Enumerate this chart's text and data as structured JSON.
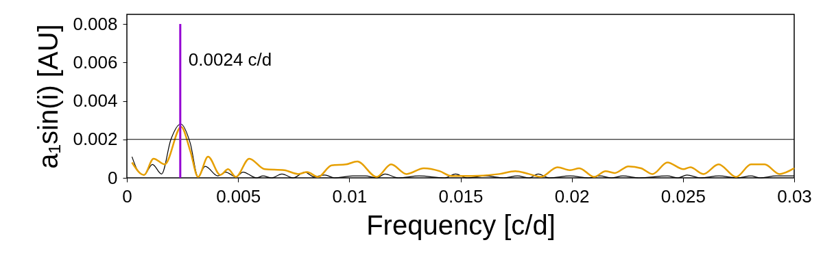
{
  "chart_data": {
    "type": "line",
    "xlabel": "Frequency [c/d]",
    "ylabel": "a₁sin(i) [AU]",
    "xlim": [
      0,
      0.03
    ],
    "ylim": [
      0,
      0.0085
    ],
    "xticks": [
      0,
      0.005,
      0.01,
      0.015,
      0.02,
      0.025,
      0.03
    ],
    "yticks": [
      0,
      0.002,
      0.004,
      0.006,
      0.008
    ],
    "grid": false,
    "marker": "none",
    "line_style": "solid",
    "ref_lines": [
      {
        "axis": "y",
        "value": 0.002,
        "color": "#000000"
      },
      {
        "axis": "x",
        "value": 0.0024,
        "label": "0.0024 c/d",
        "color": "#9400d3"
      }
    ],
    "series": [
      {
        "color": "#000000",
        "x": [
          0.00023,
          0.00048,
          0.00077,
          0.00115,
          0.00156,
          0.00198,
          0.00242,
          0.00285,
          0.0032,
          0.00352,
          0.00409,
          0.00444,
          0.0049,
          0.00522,
          0.00583,
          0.00612,
          0.0065,
          0.00697,
          0.00748,
          0.008,
          0.00841,
          0.0089,
          0.00933,
          0.01015,
          0.01072,
          0.01123,
          0.0116,
          0.01221,
          0.01314,
          0.01427,
          0.01478,
          0.0153,
          0.01612,
          0.01694,
          0.01756,
          0.01808,
          0.01849,
          0.019,
          0.01993,
          0.02075,
          0.02127,
          0.02178,
          0.0223,
          0.02302,
          0.0243,
          0.02477,
          0.02518,
          0.02579,
          0.02662,
          0.02744,
          0.02806,
          0.02847,
          0.02919,
          0.03
        ],
        "values": [
          0.0011,
          0.0004,
          0.00015,
          0.0007,
          0.0002,
          0.002,
          0.0028,
          0.0018,
          5e-05,
          0.0006,
          0.0001,
          0.0003,
          5e-05,
          0.0003,
          0,
          0.0001,
          0,
          0.0002,
          0,
          0.0003,
          5e-05,
          0.00015,
          0,
          0.0001,
          0.0001,
          0,
          0.0002,
          0,
          0.0001,
          0,
          0.0002,
          0,
          0.0001,
          0,
          0.0001,
          0,
          0.0002,
          0,
          0.0001,
          0,
          0.0001,
          0,
          0.0001,
          0,
          0.0001,
          0,
          0.00015,
          0,
          0.0001,
          0,
          0.0001,
          0,
          0.0001,
          0.0001
        ]
      },
      {
        "color": "#e69f00",
        "x": [
          0.00023,
          0.00077,
          0.0012,
          0.0017,
          0.00244,
          0.00285,
          0.0032,
          0.00365,
          0.0042,
          0.00455,
          0.0049,
          0.0055,
          0.0062,
          0.00707,
          0.0077,
          0.0081,
          0.0086,
          0.0092,
          0.00985,
          0.01036,
          0.01123,
          0.01188,
          0.01257,
          0.01335,
          0.01406,
          0.01458,
          0.0155,
          0.01674,
          0.01746,
          0.01808,
          0.01861,
          0.01936,
          0.01993,
          0.02034,
          0.02101,
          0.02152,
          0.02193,
          0.02255,
          0.02312,
          0.02363,
          0.0243,
          0.02502,
          0.02533,
          0.02592,
          0.0266,
          0.02739,
          0.02806,
          0.02867,
          0.02934,
          0.03
        ],
        "values": [
          0.0008,
          0.00015,
          0.001,
          0.0007,
          0.00265,
          0.0014,
          5e-05,
          0.0011,
          0.00015,
          0.00045,
          5e-05,
          0.001,
          0.00045,
          0.0004,
          0.0002,
          0.0003,
          5e-05,
          0.00065,
          0.0007,
          0.00085,
          5e-05,
          0.0007,
          0.0002,
          0.0005,
          0.00035,
          0.0001,
          0.0001,
          0.0002,
          0.00035,
          0.0002,
          5e-05,
          0.00055,
          0.0004,
          0.0005,
          5e-05,
          0.00035,
          0.00025,
          0.0006,
          0.0005,
          0.0002,
          0.0008,
          0.00045,
          0.00055,
          0.0002,
          0.0007,
          5e-05,
          0.0007,
          0.0007,
          0.0002,
          0.0005
        ]
      }
    ]
  }
}
